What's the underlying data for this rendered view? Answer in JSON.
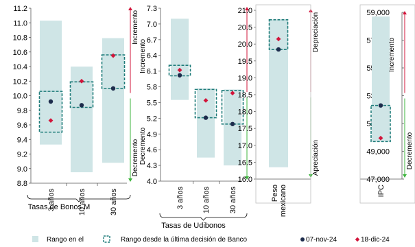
{
  "colors": {
    "range_fill": "#cfe5e6",
    "box_stroke": "#1f7c7a",
    "dot_nov": "#1d2c4c",
    "dot_dec": "#d2143a",
    "arrow_up": "#d2143a",
    "arrow_down": "#3cb43c",
    "axis": "#595959"
  },
  "legend": {
    "range_label": "Rango en el",
    "box_label": "Rango desde la última decisión de Banco",
    "nov_label": "07-nov-24",
    "dec_label": "18-dic-24"
  },
  "chart_data": [
    {
      "type": "range",
      "group_label": "Tasas de Bonos M",
      "ylim": [
        8.8,
        11.2
      ],
      "yticks": [
        "8.8",
        "9.0",
        "9.2",
        "9.4",
        "9.6",
        "9.8",
        "10.0",
        "10.2",
        "10.4",
        "10.6",
        "10.8",
        "11.0",
        "11.2"
      ],
      "categories": [
        "3 años",
        "10 años",
        "30 años"
      ],
      "range": [
        [
          9.33,
          11.03
        ],
        [
          8.95,
          10.4
        ],
        [
          9.08,
          10.79
        ]
      ],
      "box": [
        [
          9.5,
          10.06
        ],
        [
          9.84,
          10.19
        ],
        [
          10.1,
          10.56
        ]
      ],
      "series": [
        {
          "name": "07-nov-24",
          "values": [
            9.92,
            9.87,
            10.1
          ]
        },
        {
          "name": "18-dic-24",
          "values": [
            9.66,
            10.2,
            10.55
          ]
        }
      ],
      "annotations": {
        "up": "Incremento",
        "down": "Decremento"
      }
    },
    {
      "type": "range",
      "group_label": "Tasas de Udibonos",
      "ylim": [
        4.0,
        7.3
      ],
      "yticks": [
        "4.0",
        "4.3",
        "4.6",
        "4.9",
        "5.2",
        "5.5",
        "5.8",
        "6.1",
        "6.4",
        "6.7",
        "7.0",
        "7.3"
      ],
      "categories": [
        "3 años",
        "10 años",
        "30 años"
      ],
      "range": [
        [
          5.55,
          7.1
        ],
        [
          4.45,
          5.77
        ],
        [
          4.3,
          5.75
        ]
      ],
      "box": [
        [
          6.01,
          6.21
        ],
        [
          5.21,
          5.75
        ],
        [
          5.09,
          5.73
        ]
      ],
      "series": [
        {
          "name": "07-nov-24",
          "values": [
            6.02,
            5.21,
            5.09
          ]
        },
        {
          "name": "18-dic-24",
          "values": [
            6.12,
            5.54,
            5.68
          ]
        }
      ],
      "annotations": {
        "up": "Incremento",
        "down": "Decremento"
      }
    },
    {
      "type": "range",
      "group_label": "",
      "ylim": [
        16.0,
        21.0
      ],
      "yticks": [
        "16.0",
        "16.5",
        "17.0",
        "17.5",
        "18.0",
        "18.5",
        "19.0",
        "19.5",
        "20.0",
        "20.5",
        "21.0"
      ],
      "categories": [
        "Peso mexicano"
      ],
      "category_lines": [
        [
          "Peso",
          "mexicano"
        ]
      ],
      "range": [
        [
          16.35,
          20.72
        ]
      ],
      "box": [
        [
          19.84,
          20.72
        ]
      ],
      "series": [
        {
          "name": "07-nov-24",
          "values": [
            19.84
          ]
        },
        {
          "name": "18-dic-24",
          "values": [
            20.15
          ]
        }
      ],
      "annotations": {
        "up": "Depreciación",
        "down": "Apreciación"
      }
    },
    {
      "type": "range",
      "group_label": "",
      "ylim": [
        47000,
        59000
      ],
      "yticks": [
        "47,000",
        "49,000",
        "51,000",
        "53,000",
        "55,000",
        "57,000",
        "59,000"
      ],
      "categories": [
        "IPC"
      ],
      "category_lines": [
        [
          "IPC"
        ]
      ],
      "range": [
        [
          49700,
          58700
        ]
      ],
      "box": [
        [
          49700,
          52300
        ]
      ],
      "series": [
        {
          "name": "07-nov-24",
          "values": [
            52300
          ]
        },
        {
          "name": "18-dic-24",
          "values": [
            49950
          ]
        }
      ],
      "annotations": {
        "up": "Incremento",
        "down": "Decremento"
      }
    }
  ]
}
